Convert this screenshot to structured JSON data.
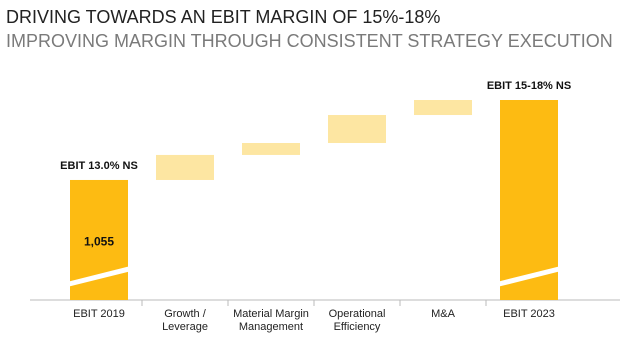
{
  "chart_data": {
    "type": "waterfall",
    "title": "DRIVING TOWARDS AN EBIT MARGIN OF 15%-18%",
    "subtitle": "IMPROVING MARGIN THROUGH CONSISTENT STRATEGY EXECUTION",
    "categories": [
      "EBIT 2019",
      "Growth / Leverage",
      "Material Margin Management",
      "Operational Efficiency",
      "M&A",
      "EBIT 2023"
    ],
    "measure": [
      "total",
      "relative",
      "relative",
      "relative",
      "relative",
      "total"
    ],
    "values": [
      1055,
      220,
      105,
      246,
      132,
      1758
    ],
    "value_labels": [
      "1,055",
      null,
      null,
      null,
      null,
      null
    ],
    "bar_annotations": [
      "EBIT 13.0% NS",
      null,
      null,
      null,
      null,
      "EBIT 15-18% NS"
    ],
    "total_color": "#fdbb12",
    "relative_color": "#fde6a2"
  }
}
